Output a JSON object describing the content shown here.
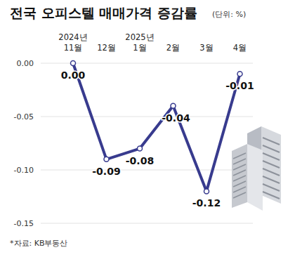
{
  "chart_data": {
    "type": "line",
    "title": "전국 오피스텔 매매가격 증감률",
    "subtitle": "(단위: %)",
    "source": "*자료: KB부동산",
    "categories": [
      "2024년 11월",
      "12월",
      "2025년 1월",
      "2월",
      "3월",
      "4월"
    ],
    "values": [
      0.0,
      -0.09,
      -0.08,
      -0.04,
      -0.12,
      -0.01
    ],
    "value_labels": [
      "0.00",
      "-0.09",
      "-0.08",
      "-0.04",
      "-0.12",
      "-0.01"
    ],
    "color": "#383b8e",
    "marker": "circle",
    "data_labels": true,
    "grid": true,
    "ylim": [
      -0.15,
      0
    ],
    "yticks": [
      {
        "value": 0,
        "label": "0.00"
      },
      {
        "value": -0.05,
        "label": "-0.05"
      },
      {
        "value": -0.1,
        "label": "-0.10"
      },
      {
        "value": -0.15,
        "label": "-0.15"
      }
    ]
  }
}
